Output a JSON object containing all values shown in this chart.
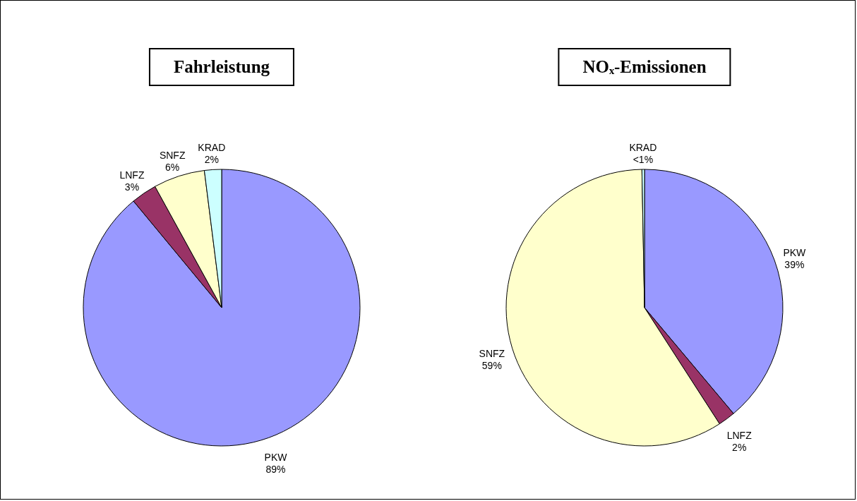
{
  "chart_data": [
    {
      "type": "pie",
      "title": "Fahrleistung",
      "categories": [
        "PKW",
        "LNFZ",
        "SNFZ",
        "KRAD"
      ],
      "values": [
        89,
        3,
        6,
        2
      ],
      "colors": [
        "#9999ff",
        "#993366",
        "#ffffcc",
        "#ccffff"
      ],
      "value_labels": [
        "89%",
        "3%",
        "6%",
        "2%"
      ]
    },
    {
      "type": "pie",
      "title": "NOₓ-Emissionen",
      "categories": [
        "PKW",
        "LNFZ",
        "SNFZ",
        "KRAD"
      ],
      "values": [
        39,
        2,
        59,
        0.3
      ],
      "colors": [
        "#9999ff",
        "#993366",
        "#ffffcc",
        "#ccffff"
      ],
      "value_labels": [
        "39%",
        "2%",
        "59%",
        "<1%"
      ]
    }
  ]
}
